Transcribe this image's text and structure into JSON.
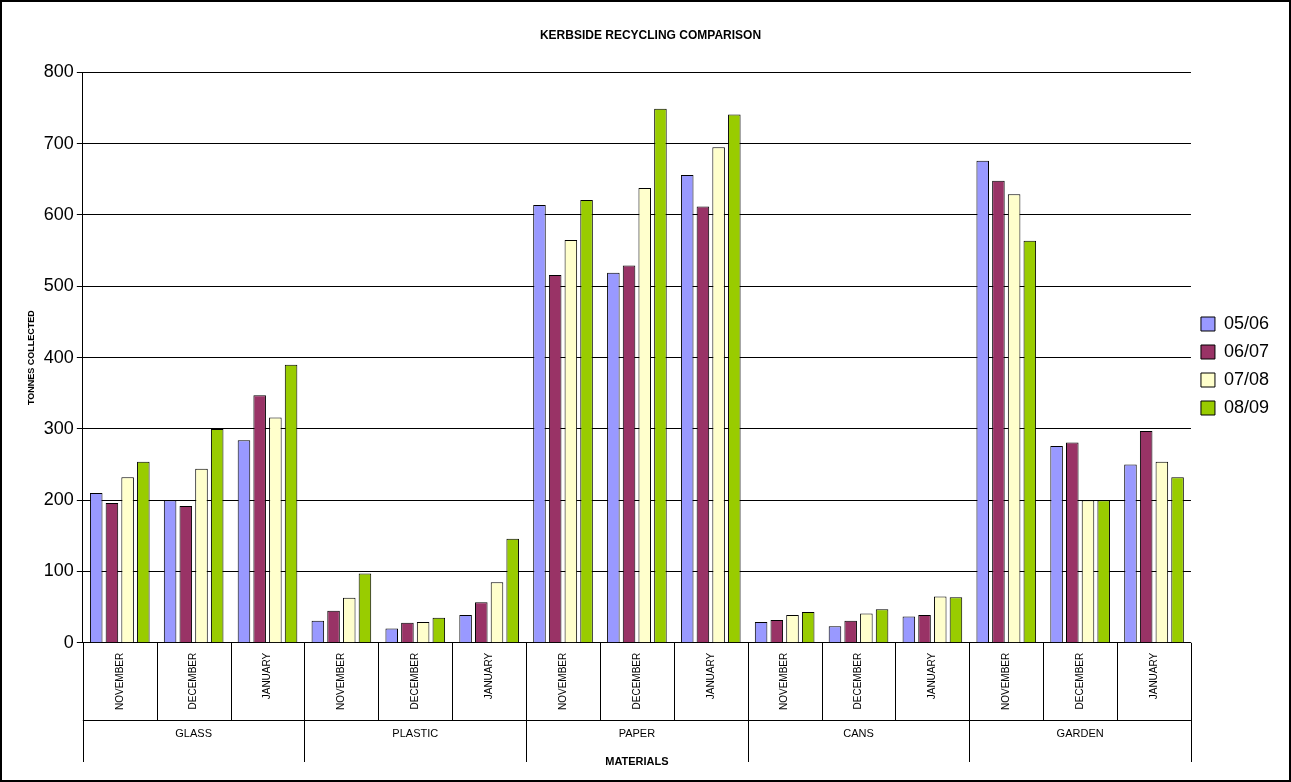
{
  "chart_data": {
    "type": "bar",
    "title": "KERBSIDE RECYCLING COMPARISON",
    "xlabel": "MATERIALS",
    "ylabel": "TONNES COLLECTED",
    "categories": [
      "NOVEMBER",
      "DECEMBER",
      "JANUARY",
      "NOVEMBER",
      "DECEMBER",
      "JANUARY",
      "NOVEMBER",
      "DECEMBER",
      "JANUARY",
      "NOVEMBER",
      "DECEMBER",
      "JANUARY",
      "NOVEMBER",
      "DECEMBER",
      "JANUARY"
    ],
    "annotations": [
      "GLASS",
      "PLASTIC",
      "PAPER",
      "CANS",
      "GARDEN"
    ],
    "series": [
      {
        "name": "05/06",
        "color": "#9999ff",
        "values": [
          210,
          200,
          284,
          31,
          20,
          39,
          614,
          519,
          656,
          29,
          23,
          37,
          676,
          276,
          250
        ]
      },
      {
        "name": "06/07",
        "color": "#993366",
        "values": [
          196,
          192,
          347,
          45,
          28,
          57,
          516,
          529,
          612,
          32,
          31,
          39,
          648,
          281,
          297
        ]
      },
      {
        "name": "07/08",
        "color": "#ffffcc",
        "values": [
          232,
          244,
          316,
          63,
          29,
          85,
          565,
          638,
          695,
          39,
          41,
          65,
          629,
          200,
          254
        ]
      },
      {
        "name": "08/09",
        "color": "#99cc00",
        "values": [
          254,
          300,
          390,
          97,
          35,
          146,
          621,
          749,
          741,
          43,
          47,
          64,
          564,
          200,
          232
        ]
      }
    ],
    "ylim": [
      0,
      800
    ],
    "yticks": [
      0,
      100,
      200,
      300,
      400,
      500,
      600,
      700,
      800
    ],
    "grid": "y",
    "legend": "right"
  }
}
